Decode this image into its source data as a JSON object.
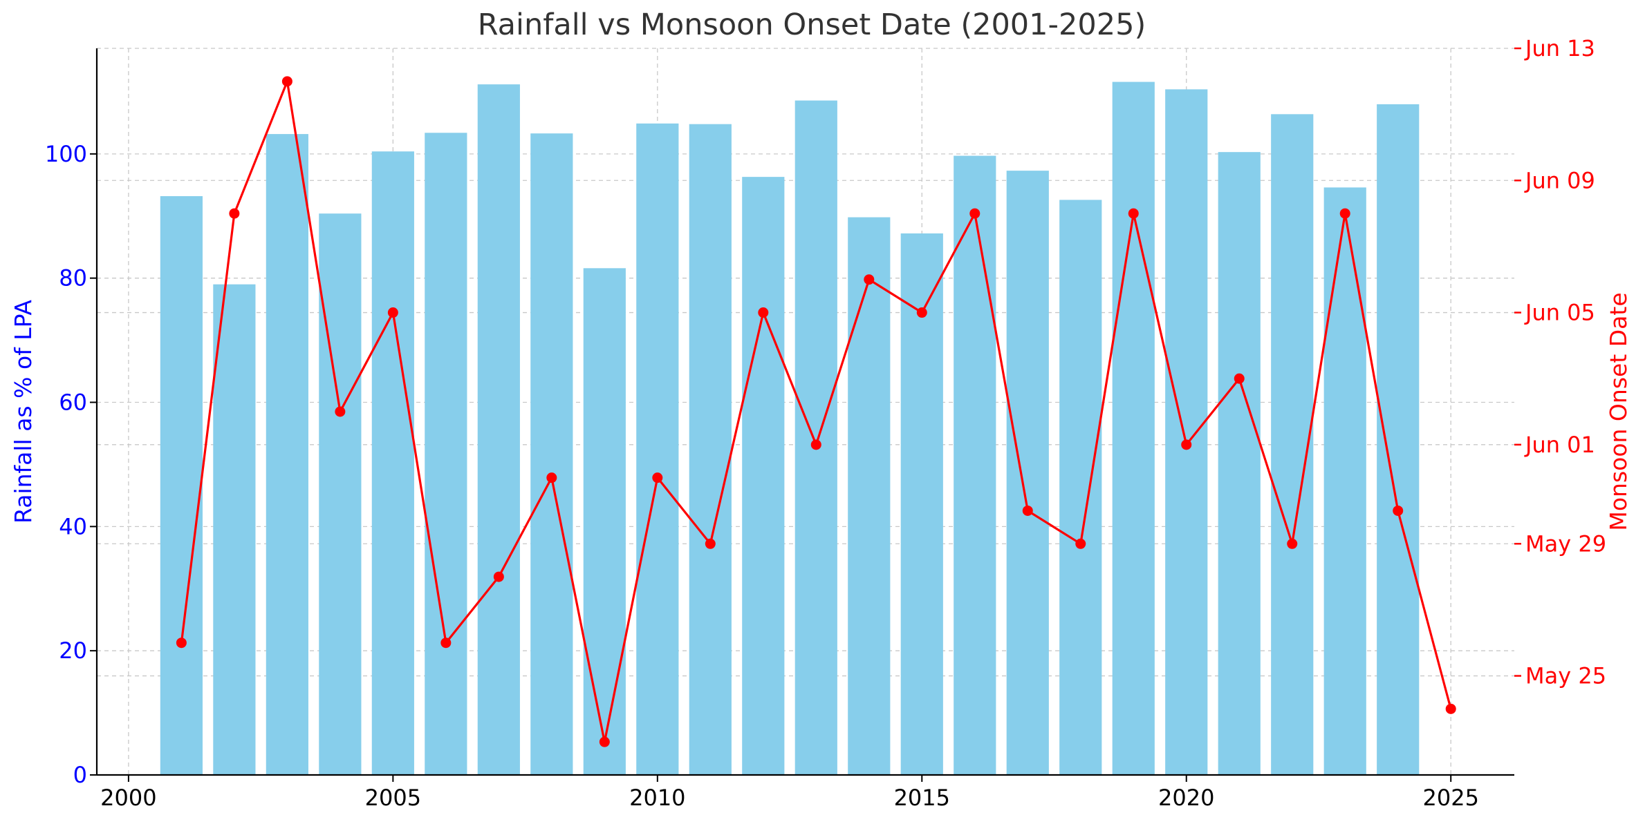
{
  "chart_data": {
    "type": "bar",
    "title": "Rainfall vs Monsoon Onset Date (2001-2025)",
    "xlabel": "",
    "ylabel": "Rainfall as % of LPA",
    "y2label": "Monsoon Onset Date",
    "x_ticks": [
      "2000",
      "2005",
      "2010",
      "2015",
      "2020",
      "2025"
    ],
    "xlim": [
      1999.4,
      2026.2
    ],
    "ylim": [
      0,
      117
    ],
    "y_ticks": [
      "0",
      "20",
      "40",
      "60",
      "80",
      "100"
    ],
    "y2lim": [
      "2025-05-22",
      "2025-06-13"
    ],
    "y2_ticks": [
      "May 25",
      "May 29",
      "Jun 01",
      "Jun 05",
      "Jun 09",
      "Jun 13"
    ],
    "grid": true,
    "colors": {
      "bars": "#87CEEB",
      "line": "#FF0000",
      "left_axis": "#0000FF",
      "right_axis": "#FF0000"
    },
    "series": [
      {
        "type": "bar",
        "axis": "left",
        "x": [
          2001,
          2002,
          2003,
          2004,
          2005,
          2006,
          2007,
          2008,
          2009,
          2010,
          2011,
          2012,
          2013,
          2014,
          2015,
          2016,
          2017,
          2018,
          2019,
          2020,
          2021,
          2022,
          2023,
          2024
        ],
        "values": [
          93.2,
          79,
          103.2,
          90.4,
          100.4,
          103.4,
          111.2,
          103.3,
          81.6,
          104.9,
          104.8,
          96.3,
          108.6,
          89.8,
          87.2,
          99.7,
          97.3,
          92.6,
          111.6,
          110.4,
          100.3,
          106.4,
          94.6,
          108
        ]
      },
      {
        "type": "line",
        "axis": "right",
        "x": [
          2001,
          2002,
          2003,
          2004,
          2005,
          2006,
          2007,
          2008,
          2009,
          2010,
          2011,
          2012,
          2013,
          2014,
          2015,
          2016,
          2017,
          2018,
          2019,
          2020,
          2021,
          2022,
          2023,
          2024,
          2025
        ],
        "values": [
          "2025-05-26",
          "2025-06-08",
          "2025-06-12",
          "2025-06-02",
          "2025-06-05",
          "2025-05-26",
          "2025-05-28",
          "2025-05-31",
          "2025-05-23",
          "2025-05-31",
          "2025-05-29",
          "2025-06-05",
          "2025-06-01",
          "2025-06-06",
          "2025-06-05",
          "2025-06-08",
          "2025-05-30",
          "2025-05-29",
          "2025-06-08",
          "2025-06-01",
          "2025-06-03",
          "2025-05-29",
          "2025-06-08",
          "2025-05-30",
          "2025-05-24"
        ]
      }
    ]
  }
}
